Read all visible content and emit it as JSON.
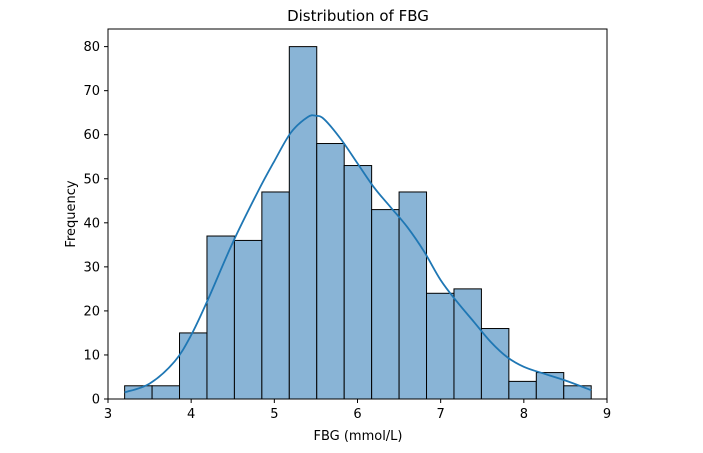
{
  "chart_data": {
    "type": "bar",
    "title": "Distribution of FBG",
    "xlabel": "FBG (mmol/L)",
    "ylabel": "Frequency",
    "xlim": [
      3.0,
      9.0
    ],
    "ylim": [
      0,
      84
    ],
    "x_ticks": [
      3,
      4,
      5,
      6,
      7,
      8,
      9
    ],
    "y_ticks": [
      0,
      10,
      20,
      30,
      40,
      50,
      60,
      70,
      80
    ],
    "grid": false,
    "bins": [
      {
        "start": 3.2,
        "end": 3.53,
        "count": 3
      },
      {
        "start": 3.53,
        "end": 3.86,
        "count": 3
      },
      {
        "start": 3.86,
        "end": 4.19,
        "count": 15
      },
      {
        "start": 4.19,
        "end": 4.52,
        "count": 37
      },
      {
        "start": 4.52,
        "end": 4.85,
        "count": 36
      },
      {
        "start": 4.85,
        "end": 5.18,
        "count": 47
      },
      {
        "start": 5.18,
        "end": 5.51,
        "count": 80
      },
      {
        "start": 5.51,
        "end": 5.84,
        "count": 58
      },
      {
        "start": 5.84,
        "end": 6.17,
        "count": 53
      },
      {
        "start": 6.17,
        "end": 6.5,
        "count": 43
      },
      {
        "start": 6.5,
        "end": 6.83,
        "count": 47
      },
      {
        "start": 6.83,
        "end": 7.16,
        "count": 24
      },
      {
        "start": 7.16,
        "end": 7.49,
        "count": 25
      },
      {
        "start": 7.49,
        "end": 7.82,
        "count": 16
      },
      {
        "start": 7.82,
        "end": 8.15,
        "count": 4
      },
      {
        "start": 8.15,
        "end": 8.48,
        "count": 6
      },
      {
        "start": 8.48,
        "end": 8.81,
        "count": 3
      }
    ],
    "kde_curve": {
      "x": [
        3.2,
        3.5,
        3.8,
        4.0,
        4.2,
        4.5,
        4.8,
        5.0,
        5.2,
        5.4,
        5.5,
        5.6,
        5.8,
        6.0,
        6.2,
        6.4,
        6.6,
        6.8,
        7.0,
        7.2,
        7.4,
        7.6,
        7.8,
        8.0,
        8.2,
        8.5,
        8.81
      ],
      "y": [
        1.5,
        3.5,
        8.5,
        14.5,
        22.5,
        35.5,
        47.0,
        54.0,
        60.5,
        64.0,
        64.3,
        63.5,
        59.0,
        53.5,
        48.0,
        43.5,
        39.0,
        33.5,
        27.0,
        22.0,
        17.5,
        13.0,
        9.5,
        7.3,
        6.0,
        4.2,
        2.0
      ]
    },
    "colors": {
      "bar_fill": "#89b4d6",
      "bar_edge": "#000000",
      "kde_line": "#1f77b4"
    }
  }
}
